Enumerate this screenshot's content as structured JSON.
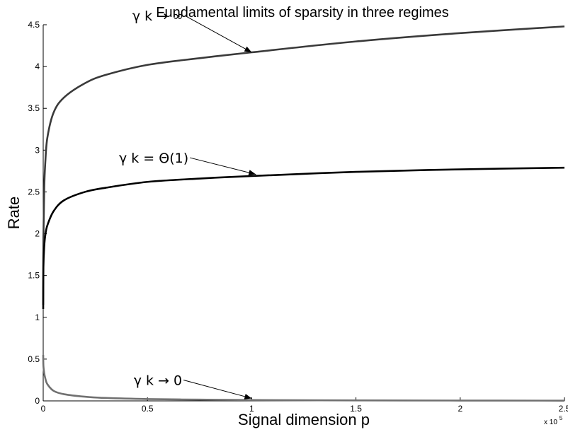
{
  "chart_data": {
    "type": "line",
    "title": "Fundamental limits of sparsity in three regimes",
    "xlabel": "Signal dimension p",
    "ylabel": "Rate",
    "xlim": [
      0,
      250000
    ],
    "ylim": [
      0,
      4.5
    ],
    "x_ticks": [
      0,
      50000,
      100000,
      150000,
      200000,
      250000
    ],
    "x_tick_labels": [
      "0",
      "0.5",
      "1",
      "1.5",
      "2",
      "2.5"
    ],
    "x_multiplier": {
      "base": "x 10",
      "exponent": "5"
    },
    "y_ticks": [
      0,
      0.5,
      1,
      1.5,
      2,
      2.5,
      3,
      3.5,
      4,
      4.5
    ],
    "y_tick_labels": [
      "0",
      "0.5",
      "1",
      "1.5",
      "2",
      "2.5",
      "3",
      "3.5",
      "4",
      "4.5"
    ],
    "grid": false,
    "series": [
      {
        "color": "#3a3a3a",
        "x": [
          0,
          100,
          500,
          1000,
          2000,
          5000,
          10000,
          20000,
          30000,
          50000,
          75000,
          100000,
          150000,
          200000,
          250000
        ],
        "y": [
          1.15,
          1.95,
          2.55,
          2.85,
          3.15,
          3.45,
          3.63,
          3.8,
          3.9,
          4.02,
          4.1,
          4.17,
          4.3,
          4.4,
          4.48
        ]
      },
      {
        "color": "#000000",
        "x": [
          0,
          100,
          500,
          1000,
          2000,
          5000,
          10000,
          20000,
          30000,
          50000,
          75000,
          100000,
          150000,
          200000,
          250000
        ],
        "y": [
          1.1,
          1.6,
          1.85,
          1.98,
          2.1,
          2.27,
          2.4,
          2.5,
          2.55,
          2.62,
          2.66,
          2.69,
          2.74,
          2.77,
          2.79
        ]
      },
      {
        "color": "#707070",
        "x": [
          0,
          100,
          500,
          1000,
          2000,
          5000,
          10000,
          20000,
          30000,
          50000,
          75000,
          100000,
          150000,
          200000,
          250000
        ],
        "y": [
          0.55,
          0.42,
          0.33,
          0.27,
          0.2,
          0.12,
          0.08,
          0.05,
          0.035,
          0.022,
          0.015,
          0.01,
          0.006,
          0.004,
          0.003
        ]
      }
    ],
    "annotations": [
      {
        "text": "γ k → ∞",
        "text_at": [
          55000,
          4.55
        ],
        "arrow_to": [
          100000,
          4.17
        ]
      },
      {
        "text": "γ k = Θ(1)",
        "text_at": [
          53000,
          2.85
        ],
        "arrow_to": [
          102000,
          2.71
        ]
      },
      {
        "text": "γ k → 0",
        "text_at": [
          55000,
          0.19
        ],
        "arrow_to": [
          100000,
          0.03
        ]
      }
    ]
  }
}
